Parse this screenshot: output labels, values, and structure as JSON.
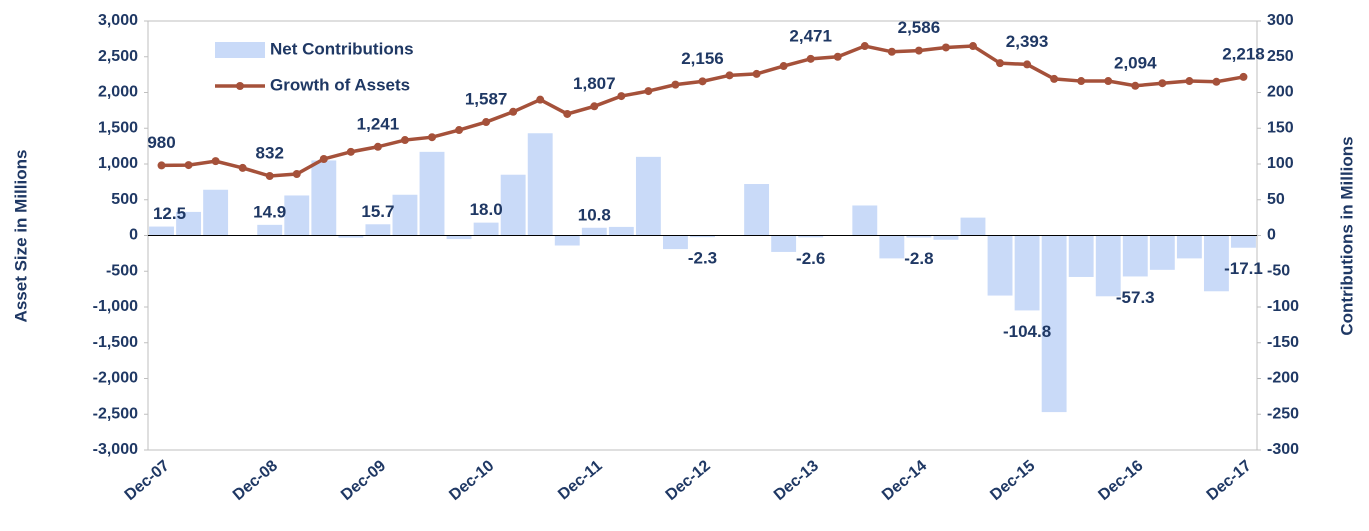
{
  "chart_data": {
    "type": "bar-line",
    "categories": [
      "Dec-07",
      null,
      null,
      null,
      "Dec-08",
      null,
      null,
      null,
      "Dec-09",
      null,
      null,
      null,
      "Dec-10",
      null,
      null,
      null,
      "Dec-11",
      null,
      null,
      null,
      "Dec-12",
      null,
      null,
      null,
      "Dec-13",
      null,
      null,
      null,
      "Dec-14",
      null,
      null,
      null,
      "Dec-15",
      null,
      null,
      null,
      "Dec-16",
      null,
      null,
      null,
      "Dec-17"
    ],
    "series": [
      {
        "name": "Net Contributions",
        "type": "bar",
        "axis": "y2",
        "color": "#c9daf8",
        "values": [
          12.5,
          33,
          64,
          0,
          14.9,
          56,
          105,
          -3,
          15.7,
          57,
          117,
          -5,
          18.0,
          85,
          143,
          -14,
          10.8,
          12,
          110,
          -19,
          -2.3,
          0,
          72,
          -23,
          -2.6,
          0,
          42,
          -32,
          -2.8,
          -6,
          25,
          -84,
          -104.8,
          -247,
          -58,
          -85,
          -57.3,
          -48,
          -32,
          -78,
          -17.1
        ],
        "value_labels": [
          "12.5",
          null,
          null,
          null,
          "14.9",
          null,
          null,
          null,
          "15.7",
          null,
          null,
          null,
          "18.0",
          null,
          null,
          null,
          "10.8",
          null,
          null,
          null,
          "-2.3",
          null,
          null,
          null,
          "-2.6",
          null,
          null,
          null,
          "-2.8",
          null,
          null,
          null,
          "-104.8",
          null,
          null,
          null,
          "-57.3",
          null,
          null,
          null,
          "-17.1"
        ]
      },
      {
        "name": "Growth of Assets",
        "type": "line",
        "axis": "y",
        "color": "#a5513a",
        "values": [
          980,
          985,
          1040,
          945,
          832,
          860,
          1070,
          1170,
          1241,
          1335,
          1375,
          1475,
          1587,
          1730,
          1900,
          1700,
          1807,
          1950,
          2020,
          2110,
          2156,
          2240,
          2260,
          2370,
          2471,
          2500,
          2650,
          2570,
          2586,
          2630,
          2650,
          2410,
          2393,
          2190,
          2160,
          2160,
          2094,
          2130,
          2160,
          2150,
          2218
        ],
        "value_labels": [
          "980",
          null,
          null,
          null,
          "832",
          null,
          null,
          null,
          "1,241",
          null,
          null,
          null,
          "1,587",
          null,
          null,
          null,
          "1,807",
          null,
          null,
          null,
          "2,156",
          null,
          null,
          null,
          "2,471",
          null,
          null,
          null,
          "2,586",
          null,
          null,
          null,
          "2,393",
          null,
          null,
          null,
          "2,094",
          null,
          null,
          null,
          "2,218"
        ]
      }
    ],
    "y_label": "Asset Size in Millions",
    "y2_label": "Contributions in Millions",
    "ylim": [
      -3000,
      3000
    ],
    "yticks": [
      {
        "value": -3000,
        "label": "-3,000"
      },
      {
        "value": -2500,
        "label": "-2,500"
      },
      {
        "value": -2000,
        "label": "-2,000"
      },
      {
        "value": -1500,
        "label": "-1,500"
      },
      {
        "value": -1000,
        "label": "-1,000"
      },
      -500,
      0,
      500,
      {
        "value": 1000,
        "label": "1,000"
      },
      {
        "value": 1500,
        "label": "1,500"
      },
      {
        "value": 2000,
        "label": "2,000"
      },
      {
        "value": 2500,
        "label": "2,500"
      },
      {
        "value": 3000,
        "label": "3,000"
      }
    ],
    "y2lim": [
      -300,
      300
    ],
    "y2ticks": [
      -300,
      -250,
      -200,
      -150,
      -100,
      -50,
      0,
      50,
      100,
      150,
      200,
      250,
      300
    ],
    "legend": "upper left"
  }
}
